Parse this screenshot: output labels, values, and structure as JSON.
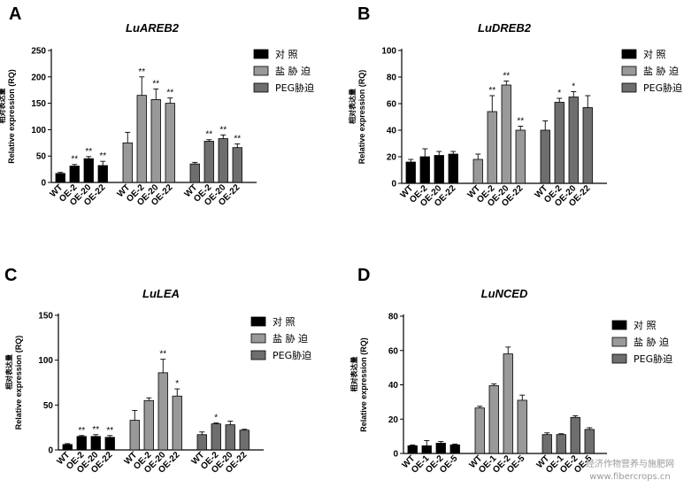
{
  "watermark": {
    "line1": "经济作物营养与施肥网",
    "line2": "www.fibercrops.cn"
  },
  "chart_data": [
    {
      "type": "bar",
      "panel": "A",
      "title": "LuAREB2",
      "ylabel": "Relative expression (RQ)",
      "ylabel_cn": "相对表达量",
      "ylim": [
        0,
        250
      ],
      "yticks": [
        0,
        50,
        100,
        150,
        200,
        250
      ],
      "groups": [
        {
          "name": "对 照",
          "color": "#000000",
          "categories": [
            "WT",
            "OE-2",
            "OE-20",
            "OE-22"
          ],
          "values": [
            17,
            31,
            45,
            32
          ],
          "errors": [
            2,
            3,
            4,
            8
          ],
          "sig": [
            "",
            "**",
            "**",
            "**"
          ]
        },
        {
          "name": "盐 胁 迫",
          "color": "#999999",
          "categories": [
            "WT",
            "OE-2",
            "OE-20",
            "OE-22"
          ],
          "values": [
            75,
            165,
            157,
            150
          ],
          "errors": [
            20,
            35,
            20,
            10
          ],
          "sig": [
            "",
            "**",
            "**",
            "**"
          ]
        },
        {
          "name": "PEG胁迫",
          "color": "#6e6e6e",
          "categories": [
            "WT",
            "OE-2",
            "OE-20",
            "OE-22"
          ],
          "values": [
            35,
            78,
            83,
            66
          ],
          "errors": [
            3,
            3,
            7,
            7
          ],
          "sig": [
            "",
            "**",
            "**",
            "**"
          ]
        }
      ]
    },
    {
      "type": "bar",
      "panel": "B",
      "title": "LuDREB2",
      "ylabel": "Relative expression (RQ)",
      "ylabel_cn": "相对表达量",
      "ylim": [
        0,
        100
      ],
      "yticks": [
        0,
        20,
        40,
        60,
        80,
        100
      ],
      "groups": [
        {
          "name": "对 照",
          "color": "#000000",
          "categories": [
            "WT",
            "OE-2",
            "OE-20",
            "OE-22"
          ],
          "values": [
            16,
            20,
            21,
            22
          ],
          "errors": [
            2,
            6,
            3,
            2
          ],
          "sig": [
            "",
            "",
            "",
            ""
          ]
        },
        {
          "name": "盐 胁 迫",
          "color": "#999999",
          "categories": [
            "WT",
            "OE-2",
            "OE-20",
            "OE-22"
          ],
          "values": [
            18,
            54,
            74,
            40
          ],
          "errors": [
            4,
            12,
            3,
            3
          ],
          "sig": [
            "",
            "**",
            "**",
            "**"
          ]
        },
        {
          "name": "PEG胁迫",
          "color": "#6e6e6e",
          "categories": [
            "WT",
            "OE-2",
            "OE-20",
            "OE-22"
          ],
          "values": [
            40,
            61,
            65,
            57
          ],
          "errors": [
            7,
            3,
            4,
            9
          ],
          "sig": [
            "",
            "*",
            "*",
            ""
          ]
        }
      ]
    },
    {
      "type": "bar",
      "panel": "C",
      "title": "LuLEA",
      "ylabel": "Relative expression (RQ)",
      "ylabel_cn": "相对表达量",
      "ylim": [
        0,
        150
      ],
      "yticks": [
        0,
        50,
        100,
        150
      ],
      "groups": [
        {
          "name": "对 照",
          "color": "#000000",
          "categories": [
            "WT",
            "OE-2",
            "OE-20",
            "OE-22"
          ],
          "values": [
            6,
            15,
            15,
            14
          ],
          "errors": [
            1,
            1,
            2,
            2
          ],
          "sig": [
            "",
            "**",
            "**",
            "**"
          ]
        },
        {
          "name": "盐 胁 迫",
          "color": "#999999",
          "categories": [
            "WT",
            "OE-2",
            "OE-20",
            "OE-22"
          ],
          "values": [
            33,
            55,
            86,
            60
          ],
          "errors": [
            11,
            3,
            15,
            8
          ],
          "sig": [
            "",
            "",
            "**",
            "*"
          ]
        },
        {
          "name": "PEG胁迫",
          "color": "#6e6e6e",
          "categories": [
            "WT",
            "OE-2",
            "OE-20",
            "OE-22"
          ],
          "values": [
            17,
            29,
            28,
            22
          ],
          "errors": [
            3,
            1,
            4,
            1
          ],
          "sig": [
            "",
            "*",
            "",
            ""
          ]
        }
      ]
    },
    {
      "type": "bar",
      "panel": "D",
      "title": "LuNCED",
      "ylabel": "Relative expression (RQ)",
      "ylabel_cn": "相对表达量",
      "ylim": [
        0,
        80
      ],
      "yticks": [
        0,
        20,
        40,
        60,
        80
      ],
      "groups": [
        {
          "name": "对 照",
          "color": "#000000",
          "categories": [
            "WT",
            "OE-1",
            "OE-2",
            "OE-5"
          ],
          "values": [
            4.5,
            4.5,
            6,
            5
          ],
          "errors": [
            0.5,
            3,
            1,
            0.5
          ],
          "sig": [
            "",
            "",
            "",
            ""
          ]
        },
        {
          "name": "盐 胁 迫",
          "color": "#999999",
          "categories": [
            "WT",
            "OE-1",
            "OE-2",
            "OE-5"
          ],
          "values": [
            26.5,
            39.5,
            58,
            31
          ],
          "errors": [
            1,
            1,
            4,
            3
          ],
          "sig": [
            "",
            "",
            "",
            ""
          ]
        },
        {
          "name": "PEG胁迫",
          "color": "#6e6e6e",
          "categories": [
            "WT",
            "OE-1",
            "OE-2",
            "OE-5"
          ],
          "values": [
            11,
            11,
            21,
            14
          ],
          "errors": [
            1,
            0.5,
            1,
            1
          ],
          "sig": [
            "",
            "",
            "",
            ""
          ]
        }
      ]
    }
  ]
}
